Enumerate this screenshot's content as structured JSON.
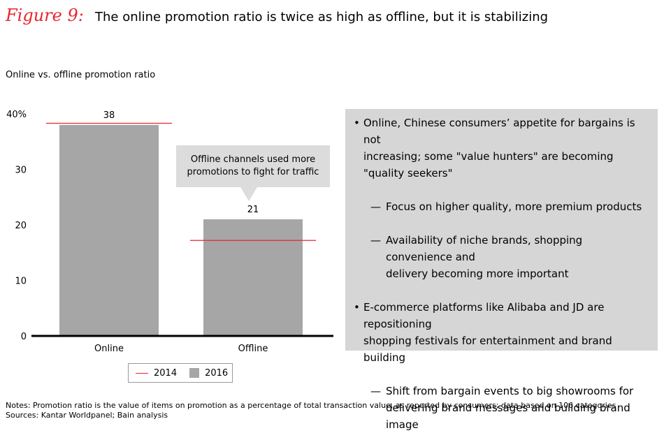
{
  "figure": {
    "label": "Figure 9:",
    "title": "The online promotion ratio is twice as high as offline, but it is stabilizing"
  },
  "chart_label": "Online vs. offline promotion ratio",
  "chart_data": {
    "type": "bar",
    "categories": [
      "Online",
      "Offline"
    ],
    "series": [
      {
        "name": "2016",
        "values": [
          38,
          21
        ],
        "color": "#a6a6a7",
        "kind": "bar"
      },
      {
        "name": "2014",
        "values": [
          38.3,
          17.2
        ],
        "color": "#e8262f",
        "kind": "marker-line"
      }
    ],
    "data_labels": [
      "38",
      "21"
    ],
    "yticks": [
      "0",
      "10",
      "20",
      "30",
      "40%"
    ],
    "ytick_values": [
      0,
      10,
      20,
      30,
      40
    ],
    "ylim": [
      0,
      40
    ],
    "grid": false,
    "legend": "bottom"
  },
  "callout": {
    "line1": "Offline channels used more",
    "line2": "promotions to fight for traffic"
  },
  "legend": {
    "item1": "2014",
    "item2": "2016"
  },
  "panel": {
    "b1_line1": "Online, Chinese consumers’ appetite for bargains is not",
    "b1_line2": "increasing; some \"value hunters\" are becoming",
    "b1_line3": "\"quality seekers\"",
    "s1": "Focus on higher quality, more premium products",
    "s2_line1": "Availability of niche brands, shopping convenience and",
    "s2_line2": "delivery becoming more important",
    "b2_line1": "E-commerce platforms like Alibaba and JD are repositioning",
    "b2_line2": "shopping festivals for entertainment and brand building",
    "s3_line1": "Shift from bargain events to big showrooms for",
    "s3_line2": "delivering brand messages and building brand image"
  },
  "notes": {
    "line1": "Notes: Promotion ratio is the value of items on promotion as a percentage of total transaction value, as reported by consumers; data based on 106 categories",
    "line2": "Sources: Kantar Worldpanel; Bain analysis"
  },
  "colors": {
    "accent": "#e8262f",
    "bar": "#a6a6a7",
    "panel": "#d6d6d6",
    "callout": "#dcdcdc"
  }
}
